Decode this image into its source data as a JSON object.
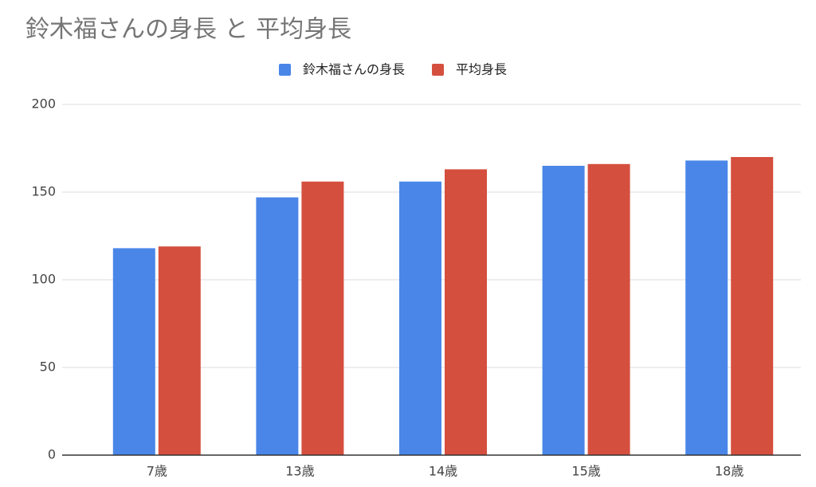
{
  "chart_data": {
    "type": "bar",
    "title": "鈴木福さんの身長 と 平均身長",
    "categories": [
      "7歳",
      "13歳",
      "14歳",
      "15歳",
      "18歳"
    ],
    "series": [
      {
        "name": "鈴木福さんの身長",
        "color": "#4a86e8",
        "values": [
          118,
          147,
          156,
          165,
          168
        ]
      },
      {
        "name": "平均身長",
        "color": "#d54f3e",
        "values": [
          119,
          156,
          163,
          166,
          170
        ]
      }
    ],
    "ylim": [
      0,
      200
    ],
    "yticks": [
      0,
      50,
      100,
      150,
      200
    ],
    "grid": true,
    "legend": "top"
  }
}
